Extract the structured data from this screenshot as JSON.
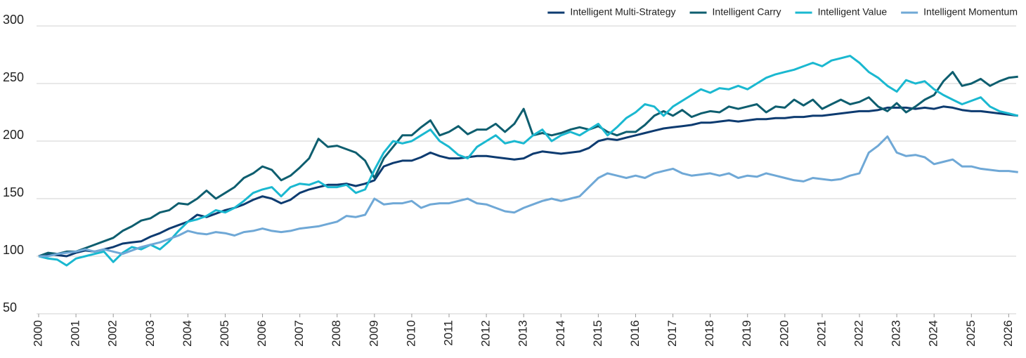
{
  "chart_data": {
    "type": "line",
    "x": [
      2000,
      2000.25,
      2000.5,
      2000.75,
      2001,
      2001.25,
      2001.5,
      2001.75,
      2002,
      2002.25,
      2002.5,
      2002.75,
      2003,
      2003.25,
      2003.5,
      2003.75,
      2004,
      2004.25,
      2004.5,
      2004.75,
      2005,
      2005.25,
      2005.5,
      2005.75,
      2006,
      2006.25,
      2006.5,
      2006.75,
      2007,
      2007.25,
      2007.5,
      2007.75,
      2008,
      2008.25,
      2008.5,
      2008.75,
      2009,
      2009.25,
      2009.5,
      2009.75,
      2010,
      2010.25,
      2010.5,
      2010.75,
      2011,
      2011.25,
      2011.5,
      2011.75,
      2012,
      2012.25,
      2012.5,
      2012.75,
      2013,
      2013.25,
      2013.5,
      2013.75,
      2014,
      2014.25,
      2014.5,
      2014.75,
      2015,
      2015.25,
      2015.5,
      2015.75,
      2016,
      2016.25,
      2016.5,
      2016.75,
      2017,
      2017.25,
      2017.5,
      2017.75,
      2018,
      2018.25,
      2018.5,
      2018.75,
      2019,
      2019.25,
      2019.5,
      2019.75,
      2020,
      2020.25,
      2020.5,
      2020.75,
      2021,
      2021.25,
      2021.5,
      2021.75,
      2022,
      2022.25,
      2022.5,
      2022.75,
      2023,
      2023.25,
      2023.5,
      2023.75,
      2024,
      2024.25,
      2024.5,
      2024.75,
      2025,
      2025.25,
      2025.5,
      2025.75,
      2026,
      2026.25
    ],
    "series": [
      {
        "name": "Intelligent Multi-Strategy",
        "color": "#0d3b70",
        "values": [
          100,
          102,
          101,
          100,
          103,
          105,
          104,
          106,
          108,
          111,
          112,
          113,
          117,
          120,
          124,
          127,
          130,
          136,
          134,
          137,
          140,
          142,
          145,
          149,
          152,
          150,
          146,
          149,
          155,
          158,
          160,
          162,
          162,
          163,
          161,
          163,
          166,
          178,
          181,
          183,
          183,
          186,
          190,
          187,
          185,
          185,
          186,
          187,
          187,
          186,
          185,
          184,
          185,
          189,
          191,
          190,
          189,
          190,
          191,
          194,
          200,
          202,
          201,
          203,
          205,
          207,
          209,
          211,
          212,
          213,
          214,
          216,
          216,
          217,
          218,
          217,
          218,
          219,
          219,
          220,
          220,
          221,
          221,
          222,
          222,
          223,
          224,
          225,
          226,
          226,
          227,
          229,
          229,
          229,
          228,
          229,
          228,
          230,
          229,
          227,
          226,
          226,
          225,
          224,
          223,
          222
        ]
      },
      {
        "name": "Intelligent Carry",
        "color": "#0e5e6f",
        "values": [
          100,
          103,
          102,
          104,
          104,
          107,
          110,
          113,
          116,
          122,
          126,
          131,
          133,
          138,
          140,
          146,
          145,
          150,
          157,
          150,
          155,
          160,
          168,
          172,
          178,
          175,
          166,
          170,
          177,
          185,
          202,
          195,
          196,
          193,
          190,
          183,
          168,
          185,
          195,
          205,
          205,
          212,
          218,
          205,
          208,
          213,
          206,
          210,
          210,
          215,
          208,
          215,
          228,
          205,
          207,
          205,
          207,
          210,
          212,
          210,
          213,
          208,
          205,
          208,
          208,
          214,
          222,
          226,
          222,
          227,
          221,
          224,
          226,
          225,
          230,
          228,
          230,
          232,
          225,
          230,
          229,
          236,
          231,
          236,
          228,
          232,
          236,
          232,
          234,
          238,
          230,
          226,
          233,
          225,
          230,
          236,
          240,
          252,
          260,
          248,
          250,
          254,
          248,
          252,
          255,
          256
        ]
      },
      {
        "name": "Intelligent Value",
        "color": "#1ab8d0",
        "values": [
          100,
          98,
          97,
          92,
          98,
          100,
          102,
          104,
          95,
          103,
          108,
          106,
          110,
          106,
          113,
          122,
          130,
          132,
          135,
          140,
          138,
          142,
          148,
          155,
          158,
          160,
          152,
          160,
          163,
          162,
          165,
          160,
          160,
          162,
          155,
          158,
          175,
          190,
          200,
          198,
          200,
          205,
          210,
          200,
          195,
          188,
          185,
          195,
          200,
          205,
          198,
          200,
          198,
          205,
          210,
          200,
          205,
          208,
          205,
          210,
          215,
          205,
          212,
          220,
          225,
          232,
          230,
          222,
          230,
          235,
          240,
          245,
          242,
          246,
          245,
          248,
          245,
          250,
          255,
          258,
          260,
          262,
          265,
          268,
          265,
          270,
          272,
          274,
          268,
          260,
          255,
          248,
          243,
          253,
          250,
          252,
          245,
          240,
          236,
          232,
          235,
          238,
          230,
          226,
          224,
          222
        ]
      },
      {
        "name": "Intelligent Momentum",
        "color": "#6fa8d6",
        "values": [
          100,
          100,
          102,
          103,
          104,
          106,
          104,
          106,
          104,
          102,
          105,
          108,
          110,
          112,
          115,
          118,
          122,
          120,
          119,
          121,
          120,
          118,
          121,
          122,
          124,
          122,
          121,
          122,
          124,
          125,
          126,
          128,
          130,
          135,
          134,
          136,
          150,
          145,
          146,
          146,
          148,
          142,
          145,
          146,
          146,
          148,
          150,
          146,
          145,
          142,
          139,
          138,
          142,
          145,
          148,
          150,
          148,
          150,
          152,
          160,
          168,
          172,
          170,
          168,
          170,
          168,
          172,
          174,
          176,
          172,
          170,
          171,
          172,
          170,
          172,
          168,
          170,
          169,
          172,
          170,
          168,
          166,
          165,
          168,
          167,
          166,
          167,
          170,
          172,
          190,
          196,
          204,
          190,
          187,
          188,
          186,
          180,
          182,
          184,
          178,
          178,
          176,
          175,
          174,
          174,
          173
        ]
      }
    ],
    "xlim": [
      2000,
      2026.2
    ],
    "xticks": [
      2000,
      2001,
      2002,
      2003,
      2004,
      2005,
      2006,
      2007,
      2008,
      2009,
      2010,
      2011,
      2012,
      2013,
      2014,
      2015,
      2016,
      2017,
      2018,
      2019,
      2020,
      2021,
      2022,
      2023,
      2024,
      2025,
      2026
    ],
    "ylim": [
      50,
      300
    ],
    "yticks": [
      50,
      100,
      150,
      200,
      250,
      300
    ],
    "grid": true,
    "legend": "top-right"
  }
}
